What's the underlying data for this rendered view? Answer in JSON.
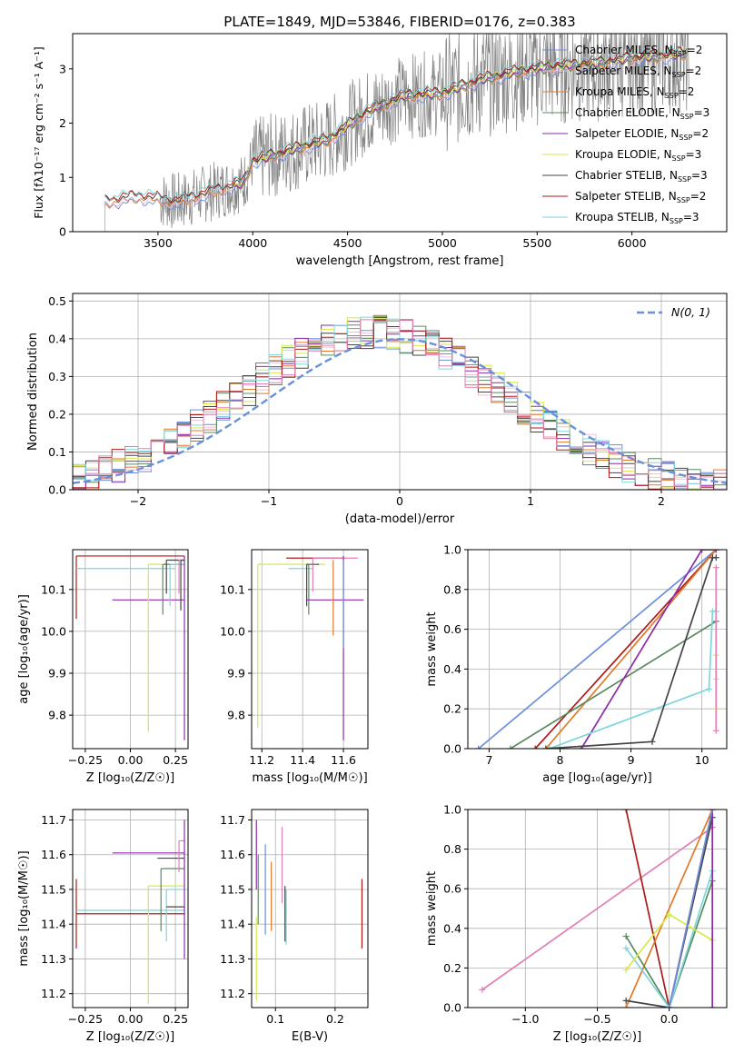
{
  "figure_title": "PLATE=1849, MJD=53846, FIBERID=0176, z=0.383",
  "colors": {
    "chabrier_miles": "#6a8fdc",
    "salpeter_miles": "#e9c0d6",
    "kroupa_miles": "#e07a2a",
    "chabrier_elodie": "#5a8a60",
    "salpeter_elodie": "#8e2aa8",
    "kroupa_elodie": "#d7e84a",
    "chabrier_stelib": "#444444",
    "salpeter_stelib": "#b01818",
    "kroupa_stelib": "#7dd6dc",
    "pink": "#e27fb5",
    "data": "#808080",
    "normal": "#6a8fdc",
    "grid": "#b0b0b0"
  },
  "chart_data": [
    {
      "id": "spectrum",
      "type": "line",
      "title": "PLATE=1849, MJD=53846, FIBERID=0176, z=0.383",
      "xlabel": "wavelength [Angstrom, rest frame]",
      "ylabel": "Flux [f_λ 10^-17 erg cm^-2 s^-1 A^-1]",
      "xlim": [
        3050,
        6500
      ],
      "ylim": [
        0,
        3.65
      ],
      "xticks": [
        3500,
        4000,
        4500,
        5000,
        5500,
        6000
      ],
      "yticks": [
        0,
        1,
        2,
        3
      ],
      "grid": false,
      "legend_position": "upper right",
      "legend": [
        "Chabrier MILES, N_SSP=2",
        "Salpeter MILES, N_SSP=2",
        "Kroupa MILES, N_SSP=2",
        "Chabrier ELODIE, N_SSP=3",
        "Salpeter ELODIE, N_SSP=2",
        "Kroupa ELODIE, N_SSP=3",
        "Chabrier STELIB, N_SSP=3",
        "Salpeter STELIB, N_SSP=2",
        "Kroupa STELIB, N_SSP=3"
      ],
      "model_continuum": {
        "x": [
          3220,
          3400,
          3600,
          3800,
          3950,
          4000,
          4200,
          4400,
          4600,
          4800,
          5000,
          5200,
          5400,
          5600,
          5800,
          6000,
          6200,
          6300
        ],
        "y": [
          0.55,
          0.65,
          0.55,
          0.75,
          0.9,
          1.3,
          1.5,
          1.7,
          2.2,
          2.5,
          2.55,
          2.8,
          2.95,
          3.05,
          3.1,
          3.2,
          3.25,
          3.3
        ]
      },
      "data_range": [
        3510,
        6300
      ]
    },
    {
      "id": "residuals",
      "type": "line",
      "xlabel": "(data-model)/error",
      "ylabel": "Normed distribution",
      "xlim": [
        -2.5,
        2.5
      ],
      "ylim": [
        0,
        0.52
      ],
      "xticks": [
        -2,
        -1,
        0,
        1,
        2
      ],
      "yticks": [
        0.0,
        0.1,
        0.2,
        0.3,
        0.4,
        0.5
      ],
      "grid": true,
      "legend_position": "upper right",
      "legend": [
        "N(0, 1)"
      ],
      "bin_width": 0.1
    },
    {
      "id": "age_vs_Z",
      "type": "scatter",
      "xlabel": "Z [log10(Z/Z_sun)]",
      "ylabel": "age [log10(age/yr)]",
      "xlim": [
        -0.32,
        0.32
      ],
      "ylim": [
        9.72,
        10.195
      ],
      "xticks": [
        -0.25,
        0.0,
        0.25
      ],
      "yticks": [
        9.8,
        9.9,
        10.0,
        10.1
      ],
      "grid": true,
      "errorbars": [
        {
          "series": "salpeter_stelib",
          "x": -0.3,
          "y": 10.18,
          "xerr": [
            0,
            0.6
          ],
          "yerr": [
            0.15,
            0
          ]
        },
        {
          "series": "kroupa_stelib",
          "x": -0.3,
          "y": 10.15,
          "xerr": [
            0,
            0.55
          ],
          "yerr": [
            0,
            0
          ]
        },
        {
          "series": "salpeter_elodie",
          "x": -0.1,
          "y": 10.075,
          "xerr": [
            0,
            0.4
          ],
          "yerr": [
            0,
            0
          ]
        },
        {
          "series": "kroupa_elodie",
          "x": 0.1,
          "y": 10.16,
          "xerr": [
            0,
            0.2
          ],
          "yerr": [
            0.4,
            0
          ]
        },
        {
          "series": "chabrier_elodie",
          "x": 0.18,
          "y": 10.16,
          "xerr": [
            0,
            0.12
          ],
          "yerr": [
            0.12,
            0
          ]
        },
        {
          "series": "chabrier_stelib",
          "x": 0.2,
          "y": 10.17,
          "xerr": [
            0,
            0.1
          ],
          "yerr": [
            0.08,
            0
          ]
        },
        {
          "series": "kroupa_stelib",
          "x": 0.22,
          "y": 10.16,
          "xerr": [
            0,
            0.08
          ],
          "yerr": [
            0.1,
            0
          ]
        },
        {
          "series": "pink",
          "x": 0.27,
          "y": 10.17,
          "xerr": [
            0,
            0.03
          ],
          "yerr": [
            0.08,
            0
          ]
        },
        {
          "series": "salpeter_elodie",
          "x": 0.3,
          "y": 10.18,
          "xerr": [
            0,
            0
          ],
          "yerr": [
            0.44,
            0
          ]
        },
        {
          "series": "chabrier_stelib",
          "x": 0.28,
          "y": 10.17,
          "xerr": [
            0,
            0.02
          ],
          "yerr": [
            0.12,
            0
          ]
        }
      ]
    },
    {
      "id": "age_vs_mass",
      "type": "scatter",
      "xlabel": "mass [log10(M/M_sun)]",
      "ylabel": "",
      "xlim": [
        11.15,
        11.72
      ],
      "ylim": [
        9.72,
        10.195
      ],
      "xticks": [
        11.2,
        11.4,
        11.6
      ],
      "yticks": [
        9.8,
        9.9,
        10.0,
        10.1
      ],
      "grid": true,
      "errorbars": [
        {
          "series": "kroupa_elodie",
          "x": 11.18,
          "y": 10.16,
          "xerr": [
            0,
            0.33
          ],
          "yerr": [
            0.39,
            0
          ]
        },
        {
          "series": "salpeter_stelib",
          "x": 11.32,
          "y": 10.175,
          "xerr": [
            0,
            0.28
          ],
          "yerr": [
            0,
            0
          ]
        },
        {
          "series": "pink",
          "x": 11.45,
          "y": 10.175,
          "xerr": [
            0,
            0.22
          ],
          "yerr": [
            0.08,
            0
          ]
        },
        {
          "series": "kroupa_stelib",
          "x": 11.33,
          "y": 10.15,
          "xerr": [
            0,
            0.12
          ],
          "yerr": [
            0,
            0
          ]
        },
        {
          "series": "chabrier_stelib",
          "x": 11.42,
          "y": 10.16,
          "xerr": [
            0,
            0.06
          ],
          "yerr": [
            0.1,
            0
          ]
        },
        {
          "series": "chabrier_elodie",
          "x": 11.43,
          "y": 10.16,
          "xerr": [
            0,
            0.04
          ],
          "yerr": [
            0.12,
            0
          ]
        },
        {
          "series": "salpeter_elodie",
          "x": 11.42,
          "y": 10.075,
          "xerr": [
            0,
            0.28
          ],
          "yerr": [
            0,
            0
          ]
        },
        {
          "series": "kroupa_miles",
          "x": 11.55,
          "y": 10.17,
          "xerr": [
            0,
            0
          ],
          "yerr": [
            0.18,
            0
          ]
        },
        {
          "series": "salpeter_elodie",
          "x": 11.6,
          "y": 10.18,
          "xerr": [
            0,
            0
          ],
          "yerr": [
            0.44,
            0
          ]
        },
        {
          "series": "chabrier_miles",
          "x": 11.6,
          "y": 10.17,
          "xerr": [
            0,
            0
          ],
          "yerr": [
            0.21,
            0
          ]
        }
      ]
    },
    {
      "id": "mass_weight_vs_age",
      "type": "line",
      "xlabel": "age [log10(age/yr)]",
      "ylabel": "mass weight",
      "xlim": [
        6.7,
        10.35
      ],
      "ylim": [
        0,
        1.0
      ],
      "xticks": [
        7,
        8,
        9,
        10
      ],
      "yticks": [
        0.0,
        0.2,
        0.4,
        0.6,
        0.8,
        1.0
      ],
      "grid": true,
      "series": [
        {
          "name": "chabrier_miles",
          "x": [
            6.85,
            10.2
          ],
          "y": [
            0.0,
            1.0
          ]
        },
        {
          "name": "salpeter_stelib",
          "x": [
            7.65,
            10.2
          ],
          "y": [
            0.0,
            1.0
          ]
        },
        {
          "name": "kroupa_miles",
          "x": [
            7.8,
            10.2
          ],
          "y": [
            0.0,
            1.0
          ]
        },
        {
          "name": "chabrier_elodie",
          "x": [
            7.3,
            10.2
          ],
          "y": [
            0.0,
            0.64
          ]
        },
        {
          "name": "salpeter_elodie",
          "x": [
            8.3,
            10.0,
            10.2
          ],
          "y": [
            0.0,
            1.0,
            1.0
          ]
        },
        {
          "name": "kroupa_stelib",
          "x": [
            7.85,
            10.1,
            10.15,
            10.2
          ],
          "y": [
            0.0,
            0.3,
            0.69,
            0.69
          ]
        },
        {
          "name": "chabrier_stelib",
          "x": [
            7.8,
            9.3,
            10.15,
            10.2
          ],
          "y": [
            0.0,
            0.035,
            0.96,
            0.96
          ]
        },
        {
          "name": "kroupa_elodie",
          "x": [
            10.2,
            10.2,
            10.2
          ],
          "y": [
            0.2,
            0.47,
            0.35
          ]
        },
        {
          "name": "pink",
          "x": [
            10.2,
            10.2
          ],
          "y": [
            0.09,
            0.91
          ]
        }
      ]
    },
    {
      "id": "mass_vs_Z",
      "type": "scatter",
      "xlabel": "Z [log10(Z/Z_sun)]",
      "ylabel": "mass [log10(M/M_sun)]",
      "xlim": [
        -0.32,
        0.32
      ],
      "ylim": [
        11.16,
        11.73
      ],
      "xticks": [
        -0.25,
        0.0,
        0.25
      ],
      "yticks": [
        11.2,
        11.3,
        11.4,
        11.5,
        11.6,
        11.7
      ],
      "grid": true,
      "errorbars": [
        {
          "series": "salpeter_stelib",
          "x": -0.3,
          "y": 11.43,
          "xerr": [
            0,
            0.6
          ],
          "yerr": [
            0.1,
            0.1
          ]
        },
        {
          "series": "kroupa_stelib",
          "x": -0.3,
          "y": 11.44,
          "xerr": [
            0,
            0.6
          ],
          "yerr": [
            0,
            0
          ]
        },
        {
          "series": "salpeter_elodie",
          "x": -0.1,
          "y": 11.605,
          "xerr": [
            0,
            0.4
          ],
          "yerr": [
            0,
            0
          ]
        },
        {
          "series": "kroupa_elodie",
          "x": 0.1,
          "y": 11.51,
          "xerr": [
            0,
            0.2
          ],
          "yerr": [
            0.34,
            0
          ]
        },
        {
          "series": "chabrier_stelib",
          "x": 0.15,
          "y": 11.59,
          "xerr": [
            0,
            0.15
          ],
          "yerr": [
            0,
            0
          ]
        },
        {
          "series": "chabrier_elodie",
          "x": 0.17,
          "y": 11.56,
          "xerr": [
            0,
            0.13
          ],
          "yerr": [
            0.18,
            0
          ]
        },
        {
          "series": "kroupa_stelib",
          "x": 0.2,
          "y": 11.5,
          "xerr": [
            0,
            0.1
          ],
          "yerr": [
            0.15,
            0
          ]
        },
        {
          "series": "pink",
          "x": 0.27,
          "y": 11.64,
          "xerr": [
            0,
            0.03
          ],
          "yerr": [
            0.09,
            0
          ]
        },
        {
          "series": "chabrier_stelib",
          "x": 0.2,
          "y": 11.45,
          "xerr": [
            0,
            0.1
          ],
          "yerr": [
            0,
            0
          ]
        },
        {
          "series": "salpeter_elodie",
          "x": 0.3,
          "y": 11.5,
          "xerr": [
            0,
            0
          ],
          "yerr": [
            0.2,
            0.2
          ]
        }
      ]
    },
    {
      "id": "mass_vs_ebv",
      "type": "scatter",
      "xlabel": "E(B-V)",
      "ylabel": "",
      "xlim": [
        0.06,
        0.255
      ],
      "ylim": [
        11.16,
        11.73
      ],
      "xticks": [
        0.1,
        0.2
      ],
      "yticks": [
        11.2,
        11.3,
        11.4,
        11.5,
        11.6,
        11.7
      ],
      "grid": true,
      "errorbars": [
        {
          "series": "salpeter_elodie",
          "x": 0.068,
          "y": 11.6,
          "xerr": [
            0,
            0
          ],
          "yerr": [
            0.1,
            0.1
          ]
        },
        {
          "series": "chabrier_elodie",
          "x": 0.071,
          "y": 11.5,
          "xerr": [
            0,
            0
          ],
          "yerr": [
            0.1,
            0.1
          ]
        },
        {
          "series": "kroupa_elodie",
          "x": 0.068,
          "y": 11.3,
          "xerr": [
            0,
            0
          ],
          "yerr": [
            0.12,
            0.12
          ]
        },
        {
          "series": "chabrier_miles",
          "x": 0.083,
          "y": 11.5,
          "xerr": [
            0,
            0
          ],
          "yerr": [
            0.13,
            0.13
          ]
        },
        {
          "series": "kroupa_miles",
          "x": 0.093,
          "y": 11.48,
          "xerr": [
            0,
            0
          ],
          "yerr": [
            0.1,
            0.1
          ]
        },
        {
          "series": "pink",
          "x": 0.111,
          "y": 11.57,
          "xerr": [
            0,
            0
          ],
          "yerr": [
            0.11,
            0.11
          ]
        },
        {
          "series": "chabrier_stelib",
          "x": 0.116,
          "y": 11.43,
          "xerr": [
            0,
            0
          ],
          "yerr": [
            0.08,
            0.08
          ]
        },
        {
          "series": "kroupa_stelib",
          "x": 0.118,
          "y": 11.42,
          "xerr": [
            0,
            0
          ],
          "yerr": [
            0.08,
            0.08
          ]
        },
        {
          "series": "salpeter_stelib",
          "x": 0.245,
          "y": 11.43,
          "xerr": [
            0,
            0
          ],
          "yerr": [
            0.1,
            0.1
          ]
        }
      ]
    },
    {
      "id": "mass_weight_vs_Z",
      "type": "line",
      "xlabel": "Z [log10(Z/Z_sun)]",
      "ylabel": "mass weight",
      "xlim": [
        -1.4,
        0.4
      ],
      "ylim": [
        0,
        1.0
      ],
      "xticks": [
        -1.0,
        -0.5,
        0.0
      ],
      "yticks": [
        0.0,
        0.2,
        0.4,
        0.6,
        0.8,
        1.0
      ],
      "grid": true,
      "series": [
        {
          "name": "pink",
          "x": [
            -1.3,
            0.3
          ],
          "y": [
            0.09,
            0.91
          ]
        },
        {
          "name": "salpeter_stelib",
          "x": [
            -0.3,
            0.0,
            0.3
          ],
          "y": [
            1.0,
            0.0,
            1.0
          ]
        },
        {
          "name": "kroupa_miles",
          "x": [
            -0.3,
            0.3
          ],
          "y": [
            0.0,
            1.0
          ]
        },
        {
          "name": "chabrier_stelib",
          "x": [
            -0.3,
            0.0,
            0.3
          ],
          "y": [
            0.035,
            0.0,
            0.96
          ]
        },
        {
          "name": "chabrier_elodie",
          "x": [
            -0.3,
            0.0,
            0.3
          ],
          "y": [
            0.36,
            0.0,
            0.64
          ]
        },
        {
          "name": "kroupa_stelib",
          "x": [
            -0.3,
            0.0,
            0.3
          ],
          "y": [
            0.3,
            0.0,
            0.69
          ]
        },
        {
          "name": "kroupa_elodie",
          "x": [
            -0.3,
            0.0,
            0.3
          ],
          "y": [
            0.19,
            0.47,
            0.34
          ]
        },
        {
          "name": "salpeter_elodie",
          "x": [
            0.3,
            0.3
          ],
          "y": [
            0.0,
            1.0
          ]
        },
        {
          "name": "chabrier_miles",
          "x": [
            0.0,
            0.3
          ],
          "y": [
            0.0,
            1.0
          ]
        }
      ]
    }
  ]
}
